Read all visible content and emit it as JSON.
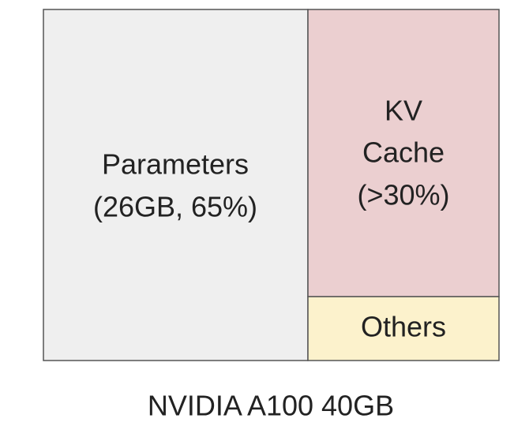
{
  "blocks": [
    {
      "lines": [
        "Parameters",
        "(26GB, 65%)"
      ]
    },
    {
      "lines": [
        "KV",
        "Cache",
        "(>30%)"
      ]
    },
    {
      "lines": [
        "Others"
      ]
    }
  ],
  "caption": "NVIDIA A100 40GB"
}
